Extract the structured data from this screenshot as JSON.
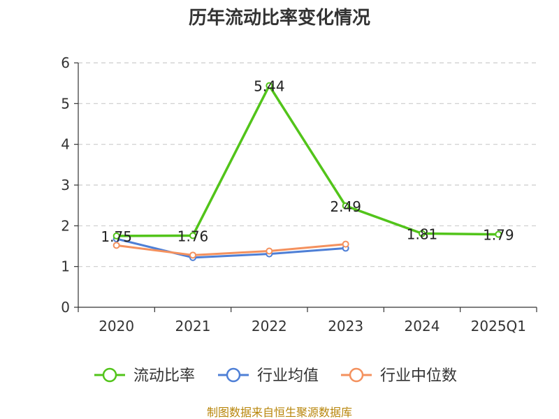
{
  "chart_data": {
    "type": "line",
    "title": "历年流动比率变化情况",
    "categories": [
      "2020",
      "2021",
      "2022",
      "2023",
      "2024",
      "2025Q1"
    ],
    "ylim": [
      0,
      6
    ],
    "yticks": [
      "0",
      "1",
      "2",
      "3",
      "4",
      "5",
      "6"
    ],
    "grid": true,
    "legend_position": "bottom",
    "series": [
      {
        "name": "流动比率",
        "color": "#52c41a",
        "values": [
          1.75,
          1.76,
          5.44,
          2.49,
          1.81,
          1.79
        ],
        "labels": [
          "1.75",
          "1.76",
          "5.44",
          "2.49",
          "1.81",
          "1.79"
        ]
      },
      {
        "name": "行业均值",
        "color": "#4e7fd6",
        "values": [
          1.68,
          1.22,
          1.31,
          1.45,
          null,
          null
        ]
      },
      {
        "name": "行业中位数",
        "color": "#f4915e",
        "values": [
          1.52,
          1.28,
          1.38,
          1.55,
          null,
          null
        ]
      }
    ],
    "source": "制图数据来自恒生聚源数据库"
  }
}
